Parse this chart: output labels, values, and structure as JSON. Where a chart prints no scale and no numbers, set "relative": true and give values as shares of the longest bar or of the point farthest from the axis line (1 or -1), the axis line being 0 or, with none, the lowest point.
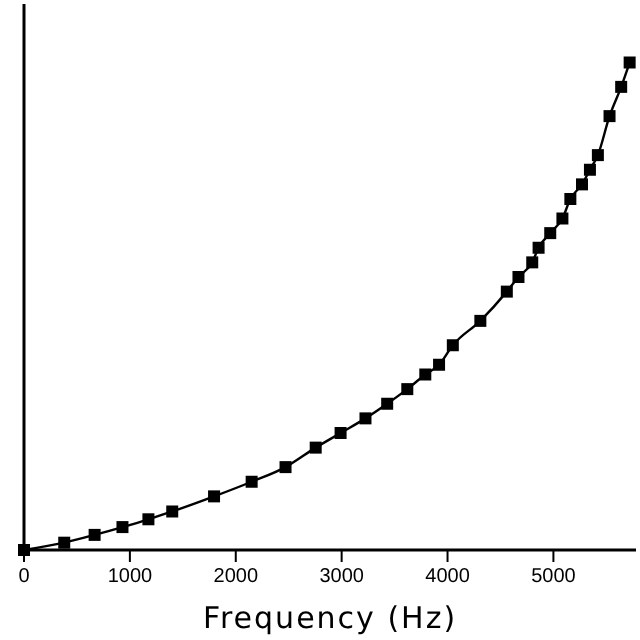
{
  "chart_data": {
    "type": "line",
    "xlabel": "Frequency (Hz)",
    "relative": true,
    "marker": "square",
    "line_style": "solid",
    "grid": false,
    "xlim": [
      0,
      5780
    ],
    "xticks": [
      0,
      1000,
      2000,
      3000,
      4000,
      5000
    ],
    "x": [
      0,
      380,
      667,
      930,
      1175,
      1400,
      1795,
      2150,
      2470,
      2755,
      2990,
      3225,
      3430,
      3620,
      3790,
      3920,
      4050,
      4310,
      4560,
      4670,
      4800,
      4860,
      4970,
      5085,
      5160,
      5270,
      5345,
      5420,
      5530,
      5640,
      5720
    ],
    "series": [
      {
        "color": "#000000",
        "values": [
          0,
          0.015,
          0.031,
          0.047,
          0.063,
          0.079,
          0.11,
          0.14,
          0.17,
          0.21,
          0.24,
          0.27,
          0.3,
          0.33,
          0.36,
          0.38,
          0.42,
          0.47,
          0.53,
          0.56,
          0.59,
          0.62,
          0.65,
          0.68,
          0.72,
          0.75,
          0.78,
          0.81,
          0.89,
          0.95,
          1
        ]
      }
    ]
  }
}
